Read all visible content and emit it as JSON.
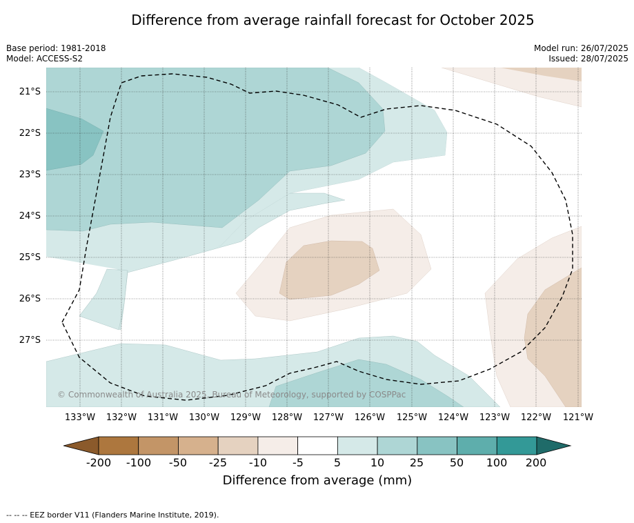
{
  "title": "Difference from average rainfall forecast for October 2025",
  "base_period": "Base period: 1981-2018",
  "model": "Model: ACCESS-S2",
  "model_run": "Model run: 26/07/2025",
  "issued": "Issued: 28/07/2025",
  "copyright": "© Commonwealth of Australia 2025, Bureau of Meteorology, supported by COSPPac",
  "eez_legend": "-- -- -- EEZ border V11 (Flanders Marine Institute, 2019).",
  "map": {
    "latitude_labels": [
      "21°S",
      "22°S",
      "23°S",
      "24°S",
      "25°S",
      "26°S",
      "27°S"
    ],
    "longitude_labels": [
      "133°W",
      "132°W",
      "131°W",
      "130°W",
      "129°W",
      "128°W",
      "127°W",
      "126°W",
      "125°W",
      "124°W",
      "123°W",
      "122°W",
      "121°W"
    ],
    "grid": true,
    "colors": {
      "wet_10_25": "#d5e9e8",
      "wet_25_50": "#aed6d5",
      "wet_50_100": "#88c3c2",
      "dry_5_10": "#f5ede8",
      "dry_10_25": "#e5d2c0",
      "eez_border": "#000000"
    }
  },
  "colorbar": {
    "title": "Difference from average (mm)",
    "tick_labels": [
      "-200",
      "-100",
      "-50",
      "-25",
      "-10",
      "-5",
      "5",
      "10",
      "25",
      "50",
      "100",
      "200"
    ],
    "colors": [
      "#8b5a2b",
      "#ad773e",
      "#c39567",
      "#d6b18d",
      "#e5d2c0",
      "#f5ede8",
      "#ffffff",
      "#d5e9e8",
      "#aed6d5",
      "#88c3c2",
      "#5eaeac",
      "#339997",
      "#1f6b69"
    ]
  }
}
